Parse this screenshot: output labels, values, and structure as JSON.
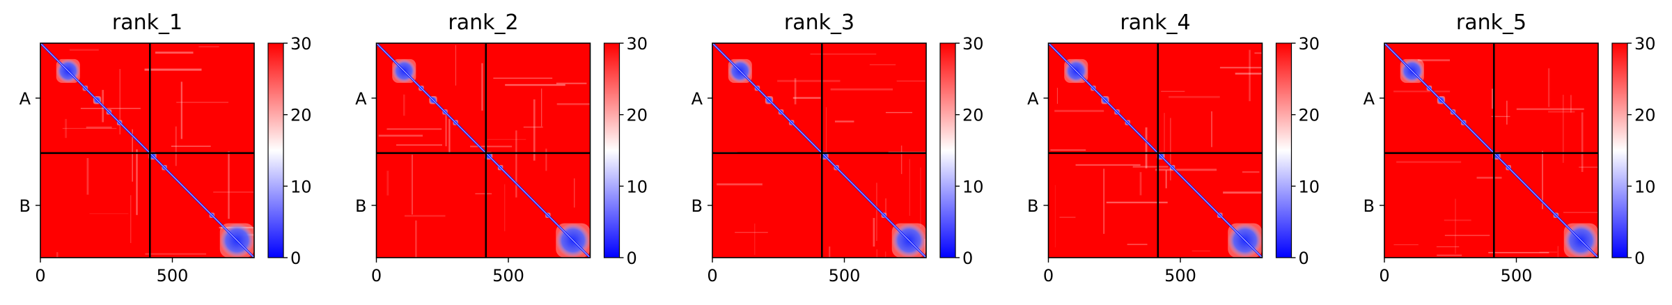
{
  "chart_data": [
    {
      "type": "heatmap",
      "title": "rank_1",
      "chains": [
        "A",
        "B"
      ],
      "chain_boundary": 415,
      "sequence_length": 810,
      "x_ticks": [
        0,
        500
      ],
      "xlim": [
        0,
        810
      ],
      "colorbar": {
        "ticks": [
          0,
          10,
          20,
          30
        ],
        "range": [
          0,
          30
        ],
        "colormap": "bwr"
      },
      "low_value_blocks": [
        [
          60,
          150
        ],
        [
          160,
          180
        ],
        [
          200,
          230
        ],
        [
          250,
          270
        ],
        [
          290,
          310
        ],
        [
          410,
          440
        ],
        [
          460,
          480
        ],
        [
          640,
          660
        ],
        [
          680,
          810
        ]
      ]
    },
    {
      "type": "heatmap",
      "title": "rank_2",
      "chains": [
        "A",
        "B"
      ],
      "chain_boundary": 415,
      "sequence_length": 810,
      "x_ticks": [
        0,
        500
      ],
      "xlim": [
        0,
        810
      ],
      "colorbar": {
        "ticks": [
          0,
          10,
          20,
          30
        ],
        "range": [
          0,
          30
        ],
        "colormap": "bwr"
      },
      "low_value_blocks": [
        [
          60,
          150
        ],
        [
          160,
          180
        ],
        [
          200,
          230
        ],
        [
          250,
          270
        ],
        [
          290,
          310
        ],
        [
          410,
          440
        ],
        [
          460,
          480
        ],
        [
          640,
          660
        ],
        [
          680,
          810
        ]
      ]
    },
    {
      "type": "heatmap",
      "title": "rank_3",
      "chains": [
        "A",
        "B"
      ],
      "chain_boundary": 415,
      "sequence_length": 810,
      "x_ticks": [
        0,
        500
      ],
      "xlim": [
        0,
        810
      ],
      "colorbar": {
        "ticks": [
          0,
          10,
          20,
          30
        ],
        "range": [
          0,
          30
        ],
        "colormap": "bwr"
      },
      "low_value_blocks": [
        [
          60,
          150
        ],
        [
          160,
          180
        ],
        [
          200,
          230
        ],
        [
          250,
          270
        ],
        [
          290,
          310
        ],
        [
          410,
          440
        ],
        [
          460,
          480
        ],
        [
          640,
          660
        ],
        [
          680,
          810
        ]
      ]
    },
    {
      "type": "heatmap",
      "title": "rank_4",
      "chains": [
        "A",
        "B"
      ],
      "chain_boundary": 415,
      "sequence_length": 810,
      "x_ticks": [
        0,
        500
      ],
      "xlim": [
        0,
        810
      ],
      "colorbar": {
        "ticks": [
          0,
          10,
          20,
          30
        ],
        "range": [
          0,
          30
        ],
        "colormap": "bwr"
      },
      "low_value_blocks": [
        [
          60,
          150
        ],
        [
          160,
          180
        ],
        [
          200,
          230
        ],
        [
          250,
          270
        ],
        [
          290,
          310
        ],
        [
          410,
          440
        ],
        [
          460,
          480
        ],
        [
          640,
          660
        ],
        [
          680,
          810
        ]
      ]
    },
    {
      "type": "heatmap",
      "title": "rank_5",
      "chains": [
        "A",
        "B"
      ],
      "chain_boundary": 415,
      "sequence_length": 810,
      "x_ticks": [
        0,
        500
      ],
      "xlim": [
        0,
        810
      ],
      "colorbar": {
        "ticks": [
          0,
          10,
          20,
          30
        ],
        "range": [
          0,
          30
        ],
        "colormap": "bwr"
      },
      "low_value_blocks": [
        [
          60,
          150
        ],
        [
          160,
          180
        ],
        [
          200,
          230
        ],
        [
          250,
          270
        ],
        [
          290,
          310
        ],
        [
          410,
          440
        ],
        [
          460,
          480
        ],
        [
          640,
          660
        ],
        [
          680,
          810
        ]
      ]
    }
  ]
}
